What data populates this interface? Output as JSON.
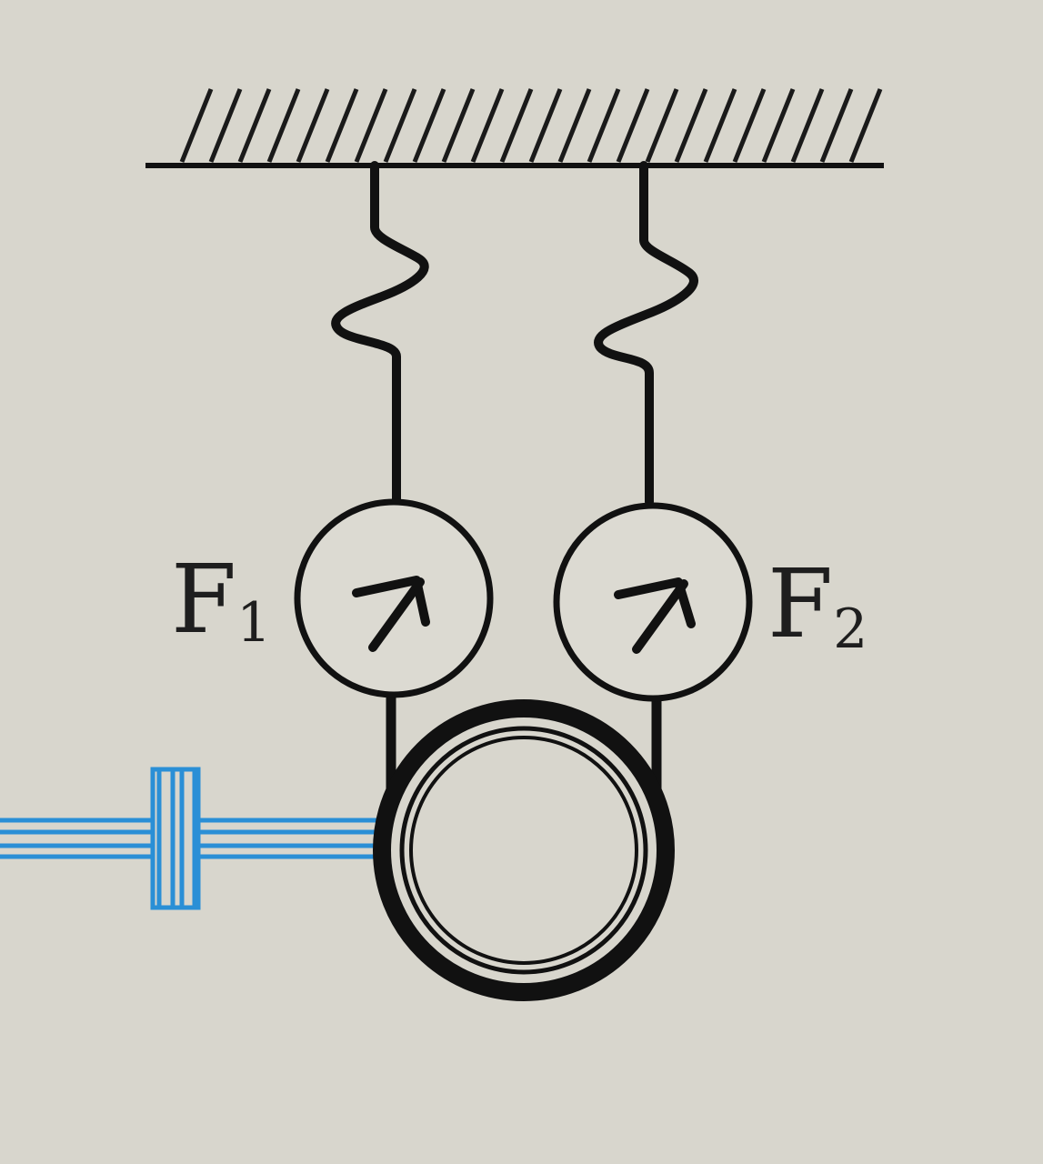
{
  "labels": {
    "f1_main": "F",
    "f1_sub": "1",
    "f2_main": "F",
    "f2_sub": "2"
  },
  "colors": {
    "background": "#d8d6cd",
    "ink": "#111111",
    "meter_face": "#dcdad2",
    "water_pipe": "#2a8fd6"
  },
  "components": {
    "ceiling": "fixed-support",
    "springs": 2,
    "spring_scales": 2,
    "ring": "circular-ring",
    "side_tube": "horizontal-tube-with-valve"
  }
}
